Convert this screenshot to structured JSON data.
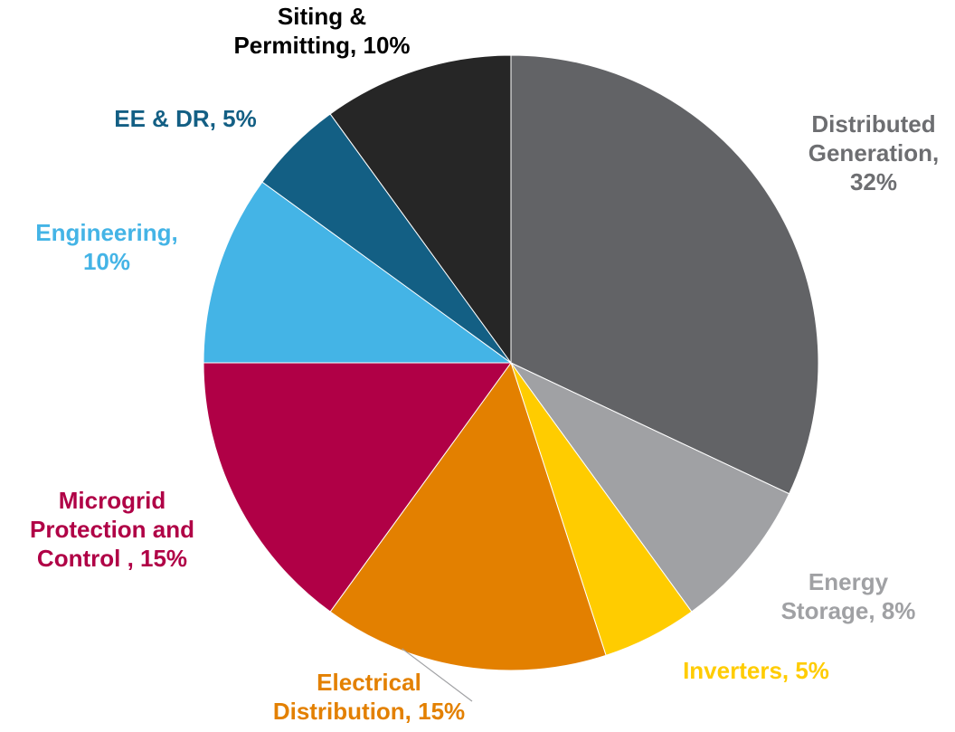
{
  "chart_data": {
    "type": "pie",
    "title": "",
    "slices": [
      {
        "name": "Distributed Generation",
        "value": 32,
        "label": [
          "Distributed",
          "Generation,",
          "32%"
        ],
        "color": "#626366",
        "label_color": "#6d6e71"
      },
      {
        "name": "Energy Storage",
        "value": 8,
        "label": [
          "Energy",
          "Storage, 8%"
        ],
        "color": "#a0a1a4",
        "label_color": "#a0a1a4"
      },
      {
        "name": "Inverters",
        "value": 5,
        "label": [
          "Inverters, 5%"
        ],
        "color": "#ffcc00",
        "label_color": "#ffcc00"
      },
      {
        "name": "Electrical Distribution",
        "value": 15,
        "label": [
          "Electrical",
          "Distribution, 15%"
        ],
        "color": "#e38000",
        "label_color": "#e38000"
      },
      {
        "name": "Microgrid Protection and Control",
        "value": 15,
        "label": [
          "Microgrid",
          "Protection and",
          "Control , 15%"
        ],
        "color": "#b00046",
        "label_color": "#b00046"
      },
      {
        "name": "Engineering",
        "value": 10,
        "label": [
          "Engineering,",
          "10%"
        ],
        "color": "#44b4e6",
        "label_color": "#44b4e6"
      },
      {
        "name": "EE & DR",
        "value": 5,
        "label": [
          "EE & DR, 5%"
        ],
        "color": "#135f84",
        "label_color": "#135f84"
      },
      {
        "name": "Siting & Permitting",
        "value": 10,
        "label": [
          "Siting &",
          "Permitting, 10%"
        ],
        "color": "#262626",
        "label_color": "#000000"
      }
    ],
    "start_angle_deg": 0,
    "direction": "clockwise",
    "legend": "none"
  }
}
